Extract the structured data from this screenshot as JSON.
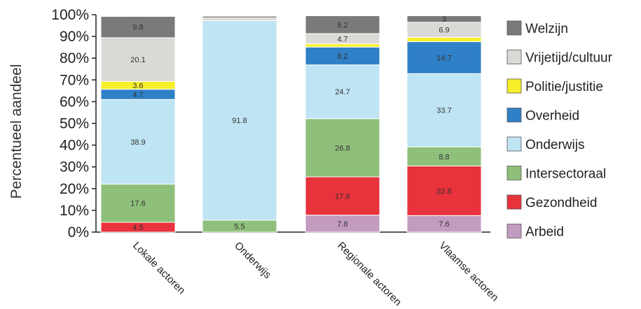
{
  "chart_data": {
    "type": "bar",
    "stacked": true,
    "categories": [
      "Lokale actoren",
      "Onderwijs",
      "Regionale actoren",
      "Vlaamse actoren"
    ],
    "series": [
      {
        "name": "Arbeid",
        "color": "#c39bc1",
        "values": [
          0,
          0,
          7.8,
          7.6
        ],
        "labels": [
          "",
          "",
          "7.8",
          "7.6"
        ]
      },
      {
        "name": "Gezondheid",
        "color": "#e8323c",
        "values": [
          4.5,
          0,
          17.6,
          22.8
        ],
        "labels": [
          "4.5",
          "",
          "17.6",
          "22.8"
        ]
      },
      {
        "name": "Intersectoraal",
        "color": "#8fc07b",
        "values": [
          17.6,
          5.5,
          26.8,
          8.8
        ],
        "labels": [
          "17.6",
          "5.5",
          "26.8",
          "8.8"
        ]
      },
      {
        "name": "Onderwijs",
        "color": "#bfe4f3",
        "values": [
          38.9,
          91.8,
          24.7,
          33.7
        ],
        "labels": [
          "38.9",
          "91.8",
          "24.7",
          "33.7"
        ]
      },
      {
        "name": "Overheid",
        "color": "#2f80c6",
        "values": [
          4.7,
          0,
          8.2,
          14.7
        ],
        "labels": [
          "4.7",
          "",
          "8.2",
          "14.7"
        ]
      },
      {
        "name": "Politie/justitie",
        "color": "#f7ef2a",
        "values": [
          3.6,
          0,
          1.5,
          2.0
        ],
        "labels": [
          "3.6",
          "",
          "",
          ""
        ]
      },
      {
        "name": "Vrijetijd/cultuur",
        "color": "#d9d9d6",
        "values": [
          20.1,
          1.2,
          4.7,
          6.9
        ],
        "labels": [
          "20.1",
          "",
          "4.7",
          "6.9"
        ]
      },
      {
        "name": "Welzijn",
        "color": "#7a7a7a",
        "values": [
          9.8,
          0.8,
          8.2,
          3.0
        ],
        "labels": [
          "9.8",
          "",
          "8.2",
          "3"
        ]
      }
    ],
    "title": "",
    "xlabel": "",
    "ylabel": "Percentueel aandeel",
    "ylim": [
      0,
      100
    ],
    "yticks": [
      0,
      10,
      20,
      30,
      40,
      50,
      60,
      70,
      80,
      90,
      100
    ],
    "ytick_labels": [
      "0%",
      "10%",
      "20%",
      "30%",
      "40%",
      "50%",
      "60%",
      "70%",
      "80%",
      "90%",
      "100%"
    ],
    "legend": {
      "position": "right",
      "items": [
        "Welzijn",
        "Vrijetijd/cultuur",
        "Politie/justitie",
        "Overheid",
        "Onderwijs",
        "Intersectoraal",
        "Gezondheid",
        "Arbeid"
      ]
    },
    "grid": false
  }
}
